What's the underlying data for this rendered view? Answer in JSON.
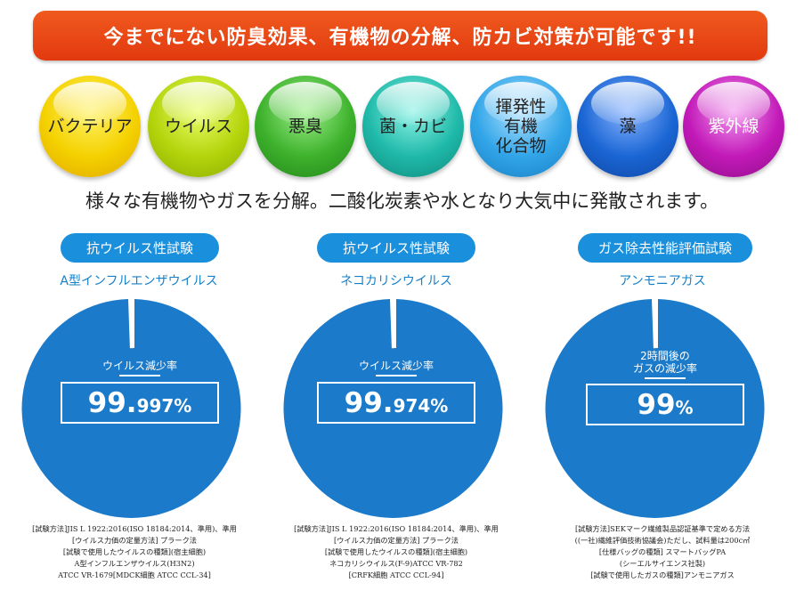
{
  "banner": "今までにない防臭効果、有機物の分解、防カビ対策が可能です!!",
  "bubbles": [
    {
      "label": "バクテリア",
      "color": "#f4d100"
    },
    {
      "label": "ウイルス",
      "color": "#b4d40c"
    },
    {
      "label": "悪臭",
      "color": "#3db12c"
    },
    {
      "label": "菌・カビ",
      "color": "#1fb9a9"
    },
    {
      "label": "揮発性有機化合物",
      "lines": [
        "揮発性",
        "有機",
        "化合物"
      ],
      "color": "#31a5e8"
    },
    {
      "label": "藻",
      "color": "#1a66d4"
    },
    {
      "label": "紫外線",
      "color": "#c219b8"
    }
  ],
  "subtitle": "様々な有機物やガスを分解。二酸化炭素や水となり大気中に発散されます。",
  "tests": [
    {
      "pill": "抗ウイルス性試験",
      "target": "A型インフルエンザウイルス",
      "rate_label": "ウイルス減少率",
      "value_big": "99.",
      "value_small": "997%",
      "reduction_percent": 99.997,
      "notes": [
        "[試験方法]JIS L 1922:2016(ISO 18184:2014、準用)、準用",
        "[ウイルス力価の定量方法] プラーク法",
        "[試験で使用したウイルスの種類](宿主細胞)",
        "A型インフルエンザウイルス(H3N2)",
        "ATCC VR-1679[MDCK細胞 ATCC CCL-34]"
      ]
    },
    {
      "pill": "抗ウイルス性試験",
      "target": "ネコカリシウイルス",
      "rate_label": "ウイルス減少率",
      "value_big": "99.",
      "value_small": "974%",
      "reduction_percent": 99.974,
      "notes": [
        "[試験方法]JIS L 1922:2016(ISO 18184:2014、準用)、準用",
        "[ウイルス力価の定量方法] プラーク法",
        "[試験で使用したウイルスの種類](宿主細胞)",
        "ネコカリシウイルス(F-9)ATCC VR-782",
        "[CRFK細胞 ATCC CCL-94]"
      ]
    },
    {
      "pill": "ガス除去性能評価試験",
      "target": "アンモニアガス",
      "rate_label_lines": [
        "2時間後の",
        "ガスの減少率"
      ],
      "value_big": "99",
      "value_small": "%",
      "reduction_percent": 99,
      "notes": [
        "[試験方法]SEKマーク繊維製品認証基準で定める方法",
        "((一社)繊維評価技術協議会)ただし、試料量は200c㎡",
        "[仕様バッグの種類] スマートバッグPA",
        "(シーエルサイエンス社製)",
        "[試験で使用したガスの種類]アンモニアガス"
      ]
    }
  ]
}
